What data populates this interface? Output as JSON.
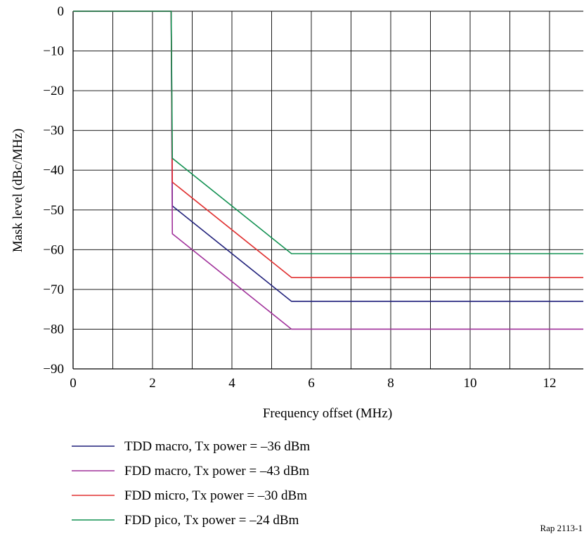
{
  "chart_data": {
    "type": "line",
    "title": "",
    "xlabel": "Frequency offset (MHz)",
    "ylabel": "Mask level (dBc/MHz)",
    "xlim": [
      0,
      12.85
    ],
    "ylim": [
      -90,
      0
    ],
    "x_ticks": [
      0,
      2,
      4,
      6,
      8,
      10,
      12
    ],
    "y_ticks": [
      0,
      -10,
      -20,
      -30,
      -40,
      -50,
      -60,
      -70,
      -80,
      -90
    ],
    "x_tick_labels": [
      "0",
      "2",
      "4",
      "6",
      "8",
      "10",
      "12"
    ],
    "y_tick_labels": [
      "0",
      "−10",
      "−20",
      "−30",
      "−40",
      "−50",
      "−60",
      "−70",
      "−80",
      "−90"
    ],
    "grid": true,
    "legend_position": "bottom-left",
    "series": [
      {
        "name": "TDD macro, Tx power = –36 dBm",
        "color": "#1f1f7a",
        "x": [
          0,
          2.47,
          2.5,
          5.5,
          12.85
        ],
        "y": [
          0,
          0,
          -49,
          -73,
          -73
        ]
      },
      {
        "name": "FDD macro, Tx power = –43 dBm",
        "color": "#a0309a",
        "x": [
          0,
          2.47,
          2.5,
          5.5,
          12.85
        ],
        "y": [
          0,
          0,
          -56,
          -80,
          -80
        ]
      },
      {
        "name": "FDD micro, Tx power = –30 dBm",
        "color": "#e03030",
        "x": [
          0,
          2.47,
          2.5,
          5.5,
          12.85
        ],
        "y": [
          0,
          0,
          -43,
          -67,
          -67
        ]
      },
      {
        "name": "FDD pico, Tx power = –24 dBm",
        "color": "#109050",
        "x": [
          0,
          2.47,
          2.5,
          5.5,
          12.85
        ],
        "y": [
          0,
          0,
          -37,
          -61,
          -61
        ]
      }
    ],
    "reference": "Rap 2113-1"
  }
}
